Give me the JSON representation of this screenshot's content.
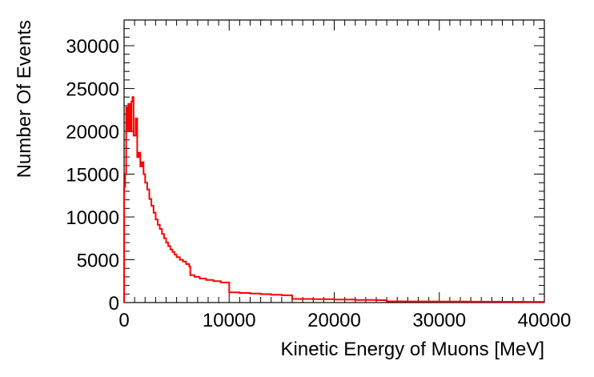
{
  "chart_data": {
    "type": "line",
    "style": "step-histogram",
    "title": "",
    "xlabel": "Kinetic Energy of Muons [MeV]",
    "ylabel": "Number Of Events",
    "xlim": [
      0,
      40000
    ],
    "ylim": [
      0,
      33000
    ],
    "x_ticks": [
      "0",
      "10000",
      "20000",
      "30000",
      "40000"
    ],
    "y_ticks": [
      "0",
      "5000",
      "10000",
      "15000",
      "20000",
      "25000",
      "30000"
    ],
    "grid": false,
    "legend": "none",
    "series": [
      {
        "color": "#ff0000",
        "points": [
          [
            0,
            13500
          ],
          [
            100,
            15000
          ],
          [
            200,
            22800
          ],
          [
            300,
            20000
          ],
          [
            400,
            23200
          ],
          [
            550,
            20000
          ],
          [
            700,
            23500
          ],
          [
            800,
            24000
          ],
          [
            900,
            19500
          ],
          [
            1100,
            21500
          ],
          [
            1250,
            17000
          ],
          [
            1400,
            17500
          ],
          [
            1550,
            15900
          ],
          [
            1700,
            16400
          ],
          [
            1850,
            15000
          ],
          [
            2000,
            14000
          ],
          [
            2200,
            13200
          ],
          [
            2400,
            12100
          ],
          [
            2600,
            11300
          ],
          [
            2800,
            10500
          ],
          [
            3000,
            9700
          ],
          [
            3200,
            9100
          ],
          [
            3400,
            8600
          ],
          [
            3600,
            8000
          ],
          [
            3800,
            7500
          ],
          [
            4000,
            7000
          ],
          [
            4200,
            6600
          ],
          [
            4400,
            6200
          ],
          [
            4600,
            5900
          ],
          [
            4800,
            5600
          ],
          [
            5000,
            5300
          ],
          [
            5300,
            5000
          ],
          [
            5600,
            4800
          ],
          [
            5900,
            4500
          ],
          [
            6200,
            4200
          ],
          [
            6300,
            3200
          ],
          [
            6700,
            3000
          ],
          [
            7200,
            2800
          ],
          [
            7800,
            2650
          ],
          [
            8500,
            2500
          ],
          [
            9200,
            2350
          ],
          [
            10000,
            1200
          ],
          [
            11000,
            1120
          ],
          [
            12000,
            1050
          ],
          [
            13000,
            980
          ],
          [
            14000,
            920
          ],
          [
            15000,
            850
          ],
          [
            16000,
            420
          ],
          [
            18000,
            390
          ],
          [
            20000,
            350
          ],
          [
            22000,
            310
          ],
          [
            24000,
            280
          ],
          [
            25000,
            140
          ],
          [
            27000,
            130
          ],
          [
            30000,
            110
          ],
          [
            33000,
            100
          ],
          [
            36000,
            90
          ],
          [
            38000,
            80
          ],
          [
            40000,
            80
          ]
        ]
      }
    ]
  }
}
